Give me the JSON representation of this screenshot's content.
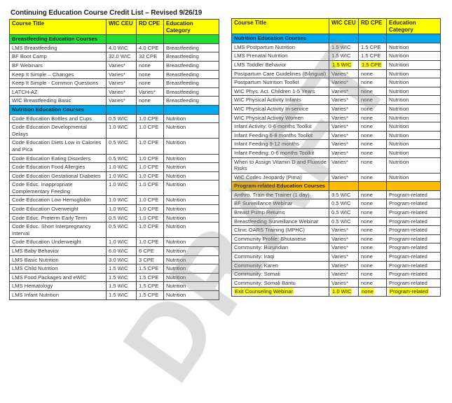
{
  "document": {
    "title": "Continuing Education Course Credit List – Revised 9/26/19",
    "watermark": "DRAFT",
    "colors": {
      "header": "#ffff00",
      "breastfeeding_section": "#22dd33",
      "nutrition_section": "#00aaee",
      "program_section": "#ffbb00",
      "highlight": "#ffff00"
    }
  },
  "columns": [
    "Course Title",
    "WIC CEU",
    "RD CPE",
    "Education Category"
  ],
  "left_table": [
    {
      "section": "Breastfeeding Education Courses",
      "color": "green"
    },
    {
      "cells": [
        "LMS Breastfeeding",
        "4.0 WIC",
        "4.0 CPE",
        "Breastfeeding"
      ]
    },
    {
      "cells": [
        "BF Boot Camp",
        "32.0 WIC",
        "32 CPE",
        "Breastfeeding"
      ]
    },
    {
      "cells": [
        "BF Webinars",
        "Varies*",
        "none",
        "Breastfeeding"
      ]
    },
    {
      "cells": [
        "Keep It Simple – Changes",
        "Varies*",
        "none",
        "Breastfeeding"
      ]
    },
    {
      "cells": [
        "Keep It Simple - Common Questions",
        "Varies*",
        "none",
        "Breastfeeding"
      ]
    },
    {
      "cells": [
        "LATCH-AZ",
        "Varies*",
        "Varies*",
        "Breastfeeding"
      ]
    },
    {
      "cells": [
        "WIC Breastfeeding Basic",
        "Varies*",
        "none",
        "Breastfeeding"
      ]
    },
    {
      "section": "Nutrition Education Courses",
      "color": "blue"
    },
    {
      "cells": [
        "Code Education Bottles and Cups",
        "0.5 WIC",
        "1.0 CPE",
        "Nutrition"
      ]
    },
    {
      "cells": [
        "Code Education Developmental Delays",
        "1.0 WIC",
        "1.0 CPE",
        "Nutrition"
      ]
    },
    {
      "cells": [
        "Code Education Diets Low in Calories and Pica",
        "0.5 WIC",
        "1.0 CPE",
        "Nutrition"
      ]
    },
    {
      "cells": [
        "Code Education Eating Disorders",
        "0.5 WIC",
        "1.0 CPE",
        "Nutrition"
      ]
    },
    {
      "cells": [
        "Code Education Food Allergies",
        "1.0 WIC",
        "1.0 CPE",
        "Nutrition"
      ]
    },
    {
      "cells": [
        "Code Education Gestational Diabetes",
        "1.0 WIC",
        "1.0 CPE",
        "Nutrition"
      ]
    },
    {
      "cells": [
        "Code Educ. Inappropriate Complementary Feeding",
        "1.0 WIC",
        "1.0 CPE",
        "Nutrition"
      ]
    },
    {
      "cells": [
        "Code Education Low Hemoglobin",
        "1.0 WIC",
        "1.0 CPE",
        "Nutrition"
      ]
    },
    {
      "cells": [
        "Code Education Overweight",
        "1.0 WIC",
        "1.0 CPE",
        "Nutrition"
      ]
    },
    {
      "cells": [
        "Code Educ. Preterm Early Term",
        "0.5 WIC",
        "1.0 CPE",
        "Nutrition"
      ]
    },
    {
      "cells": [
        "Code Educ. Short Interpregnancy Interval",
        "0.5 WIC",
        "1.0 CPE",
        "Nutrition"
      ]
    },
    {
      "cells": [
        "Code Education Underweight",
        "1.0 WIC",
        "1.0 CPE",
        "Nutrition"
      ]
    },
    {
      "cells": [
        "LMS Baby Behavior",
        "6.0 WIC",
        "6 CPE",
        "Nutrition"
      ]
    },
    {
      "cells": [
        "LMS Basic Nutrition",
        "3.0 WIC",
        "3 CPE",
        "Nutrition"
      ]
    },
    {
      "cells": [
        "LMS Child Nutrition",
        "1.5 WIC",
        "1.5 CPE",
        "Nutrition"
      ]
    },
    {
      "cells": [
        "LMS Food Packages and eWIC",
        "1.5 WIC",
        "1.5 CPE",
        "Nutrition"
      ]
    },
    {
      "cells": [
        "LMS Hematology",
        "1.5 WIC",
        "1.5 CPE",
        "Nutrition"
      ]
    },
    {
      "cells": [
        "LMS Infant Nutrition",
        "1.5 WIC",
        "1.5 CPE",
        "Nutrition"
      ]
    }
  ],
  "right_table": [
    {
      "section": "Nutrition Education Courses",
      "color": "blue"
    },
    {
      "cells": [
        "LMS Postpartum Nutrition",
        "1.5 WIC",
        "1.5 CPE",
        "Nutrition"
      ]
    },
    {
      "cells": [
        "LMS Prenatal Nutrition",
        "1.5 WIC",
        "1.5 CPE",
        "Nutrition"
      ]
    },
    {
      "cells": [
        "LMS Toddler Behavior",
        "1.5 WIC",
        "1.5 CPE",
        "Nutrition"
      ],
      "highlight": [
        1,
        2
      ]
    },
    {
      "cells": [
        "Postpartum Care Guidelines (Bilingual)",
        "Varies*",
        "none",
        "Nutrition"
      ]
    },
    {
      "cells": [
        "Postpartum Nutrition Toolkit",
        "Varies*",
        "none",
        "Nutrition"
      ]
    },
    {
      "cells": [
        "WIC Phys. Act. Children 1-5 Years",
        "Varies*",
        "none",
        "Nutrition"
      ]
    },
    {
      "cells": [
        "WIC Physical Activity Infants",
        "Varies*",
        "none",
        "Nutrition"
      ]
    },
    {
      "cells": [
        "WIC Physical Activity In-service",
        "Varies*",
        "none",
        "Nutrition"
      ]
    },
    {
      "cells": [
        "WIC Physical Activity Women",
        "Varies*",
        "none",
        "Nutrition"
      ]
    },
    {
      "cells": [
        "Infant Activity: 0-6 months Toolkit",
        "Varies*",
        "none",
        "Nutrition"
      ]
    },
    {
      "cells": [
        "Infant Feeding 6-8 months Toolkit",
        "Varies*",
        "none",
        "Nutrition"
      ]
    },
    {
      "cells": [
        "Infant Feeding 9-12 months",
        "Varies*",
        "none",
        "Nutrition"
      ]
    },
    {
      "cells": [
        "Infant Feeding: 0-6 months Toolkit",
        "Varies*",
        "none",
        "Nutrition"
      ]
    },
    {
      "cells": [
        "When to Assign Vitamin D and Fluoride Risks",
        "Varies*",
        "none",
        "Nutrition"
      ]
    },
    {
      "cells": [
        "WIC Codes Jeopardy (Pima)",
        "Varies*",
        "none",
        "Nutrition"
      ]
    },
    {
      "section": "Program-related Education Courses",
      "color": "orange"
    },
    {
      "cells": [
        "Anthro. Train the Trainer (1 day)",
        "3.5 WIC",
        "none",
        "Program-related"
      ]
    },
    {
      "cells": [
        "BF Surveillance Webinar",
        "0.5 WIC",
        "none",
        "Program-related"
      ]
    },
    {
      "cells": [
        "Breast Pump Returns",
        "0.5 WIC",
        "none",
        "Program-related"
      ]
    },
    {
      "cells": [
        "Breastfeeding Surveillance Webinar",
        "0.5 WIC",
        "none",
        "Program-related"
      ]
    },
    {
      "cells": [
        "Clinic OARS Training (MPHC)",
        "Varies*",
        "none",
        "Program-related"
      ]
    },
    {
      "cells": [
        "Community Profile: Bhutanese",
        "Varies*",
        "none",
        "Program-related"
      ]
    },
    {
      "cells": [
        "Community: Burundian",
        "Varies*",
        "none",
        "Program-related"
      ]
    },
    {
      "cells": [
        "Community: Iraqi",
        "Varies*",
        "none",
        "Program-related"
      ]
    },
    {
      "cells": [
        "Community: Karen",
        "Varies*",
        "none",
        "Program-related"
      ]
    },
    {
      "cells": [
        "Community: Somali",
        "Varies*",
        "none",
        "Program-related"
      ]
    },
    {
      "cells": [
        "Community: Somali Bantu",
        "Varies*",
        "none",
        "Program-related"
      ]
    },
    {
      "cells": [
        "Exit Counseling Webinar",
        "1.0 WIC",
        "none",
        "Program-related"
      ],
      "highlight": [
        0,
        1,
        2,
        3
      ]
    }
  ]
}
